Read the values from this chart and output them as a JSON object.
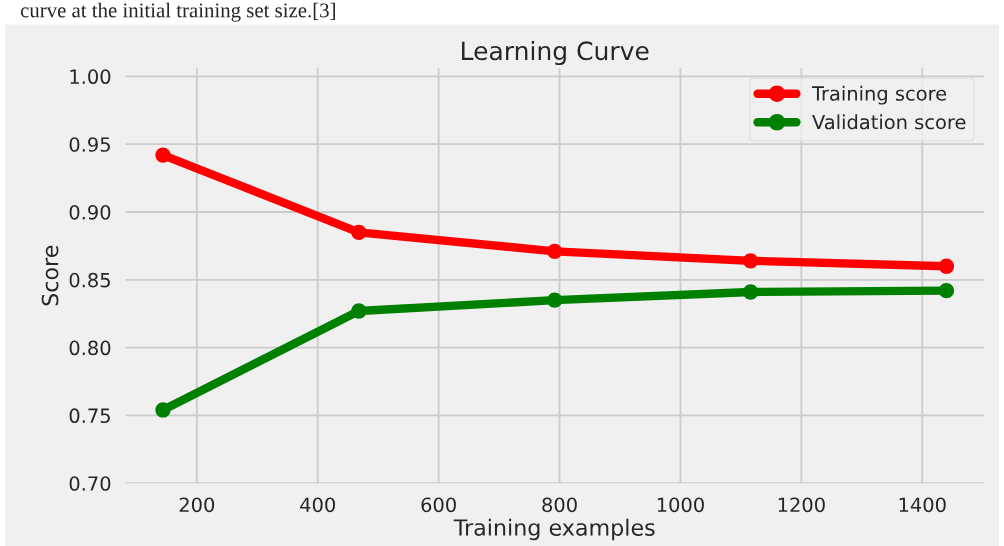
{
  "chart_data": {
    "type": "line",
    "title": "Learning Curve",
    "xlabel": "Training examples",
    "ylabel": "Score",
    "annotations": [
      "curve at the initial training set size.[3]"
    ],
    "x": [
      144,
      468,
      792,
      1116,
      1440
    ],
    "series": [
      {
        "name": "Training score",
        "color": "#ff0000",
        "values": [
          0.942,
          0.885,
          0.871,
          0.864,
          0.86
        ]
      },
      {
        "name": "Validation score",
        "color": "#008000",
        "values": [
          0.754,
          0.827,
          0.835,
          0.841,
          0.842
        ]
      }
    ],
    "xlim": [
      82,
      1502
    ],
    "ylim": [
      0.7,
      1.006
    ],
    "xticks": [
      200,
      400,
      600,
      800,
      1000,
      1200,
      1400
    ],
    "yticks": [
      {
        "value": 0.7,
        "label": "0.70"
      },
      {
        "value": 0.75,
        "label": "0.75"
      },
      {
        "value": 0.8,
        "label": "0.80"
      },
      {
        "value": 0.85,
        "label": "0.85"
      },
      {
        "value": 0.9,
        "label": "0.90"
      },
      {
        "value": 0.95,
        "label": "0.95"
      },
      {
        "value": 1.0,
        "label": "1.00"
      }
    ],
    "grid": true,
    "legend": "top right",
    "marker": "circle",
    "line_style": "solid"
  }
}
